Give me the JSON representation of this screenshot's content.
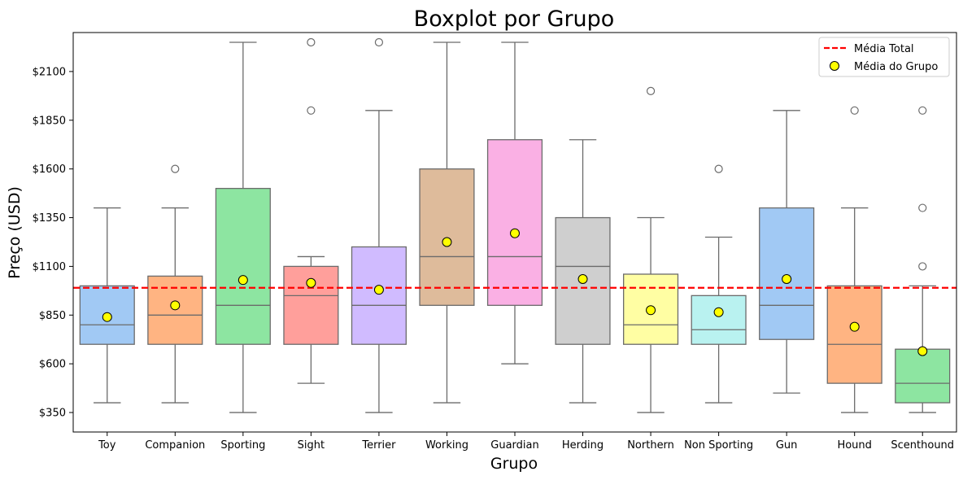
{
  "chart_data": {
    "type": "box",
    "title": "Boxplot por Grupo",
    "xlabel": "Grupo",
    "ylabel": "Preço (USD)",
    "ylim": [
      250,
      2300
    ],
    "yticks": [
      350,
      600,
      850,
      1100,
      1350,
      1600,
      1850,
      2100
    ],
    "ytick_labels": [
      "$350",
      "$600",
      "$850",
      "$1100",
      "$1350",
      "$1600",
      "$1850",
      "$2100"
    ],
    "overall_mean": 990,
    "legend": {
      "position": "top-right",
      "entries": [
        {
          "label": "Média Total",
          "kind": "line",
          "color": "#ff0000"
        },
        {
          "label": "Média do Grupo",
          "kind": "marker",
          "color": "#ffff00"
        }
      ]
    },
    "groups": [
      {
        "name": "Toy",
        "whisker_low": 400,
        "q1": 700,
        "median": 800,
        "q3": 1000,
        "whisker_high": 1400,
        "mean": 840,
        "outliers": [],
        "color": "#a1c9f4"
      },
      {
        "name": "Companion",
        "whisker_low": 400,
        "q1": 700,
        "median": 850,
        "q3": 1050,
        "whisker_high": 1400,
        "mean": 900,
        "outliers": [
          1600
        ],
        "color": "#ffb482"
      },
      {
        "name": "Sporting",
        "whisker_low": 350,
        "q1": 700,
        "median": 900,
        "q3": 1500,
        "whisker_high": 2250,
        "mean": 1030,
        "outliers": [],
        "color": "#8de5a1"
      },
      {
        "name": "Sight",
        "whisker_low": 500,
        "q1": 700,
        "median": 950,
        "q3": 1100,
        "whisker_high": 1150,
        "mean": 1015,
        "outliers": [
          1900,
          2250
        ],
        "color": "#ff9f9b"
      },
      {
        "name": "Terrier",
        "whisker_low": 350,
        "q1": 700,
        "median": 900,
        "q3": 1200,
        "whisker_high": 1900,
        "mean": 980,
        "outliers": [
          2250
        ],
        "color": "#d0bbff"
      },
      {
        "name": "Working",
        "whisker_low": 400,
        "q1": 900,
        "median": 1150,
        "q3": 1600,
        "whisker_high": 2250,
        "mean": 1225,
        "outliers": [],
        "color": "#debb9b"
      },
      {
        "name": "Guardian",
        "whisker_low": 600,
        "q1": 900,
        "median": 1150,
        "q3": 1750,
        "whisker_high": 2250,
        "mean": 1270,
        "outliers": [],
        "color": "#fab0e4"
      },
      {
        "name": "Herding",
        "whisker_low": 400,
        "q1": 700,
        "median": 1100,
        "q3": 1350,
        "whisker_high": 1750,
        "mean": 1035,
        "outliers": [],
        "color": "#cfcfcf"
      },
      {
        "name": "Northern",
        "whisker_low": 350,
        "q1": 700,
        "median": 800,
        "q3": 1060,
        "whisker_high": 1350,
        "mean": 875,
        "outliers": [
          2000
        ],
        "color": "#fffea3"
      },
      {
        "name": "Non Sporting",
        "whisker_low": 400,
        "q1": 700,
        "median": 775,
        "q3": 950,
        "whisker_high": 1250,
        "mean": 865,
        "outliers": [
          1600
        ],
        "color": "#b9f2f0"
      },
      {
        "name": "Gun",
        "whisker_low": 450,
        "q1": 725,
        "median": 900,
        "q3": 1400,
        "whisker_high": 1900,
        "mean": 1035,
        "outliers": [],
        "color": "#a1c9f4"
      },
      {
        "name": "Hound",
        "whisker_low": 350,
        "q1": 500,
        "median": 700,
        "q3": 1000,
        "whisker_high": 1400,
        "mean": 790,
        "outliers": [
          1900
        ],
        "color": "#ffb482"
      },
      {
        "name": "Scenthound",
        "whisker_low": 350,
        "q1": 400,
        "median": 500,
        "q3": 675,
        "whisker_high": 1000,
        "mean": 665,
        "outliers": [
          1100,
          1400,
          1900
        ],
        "color": "#8de5a1"
      }
    ]
  }
}
